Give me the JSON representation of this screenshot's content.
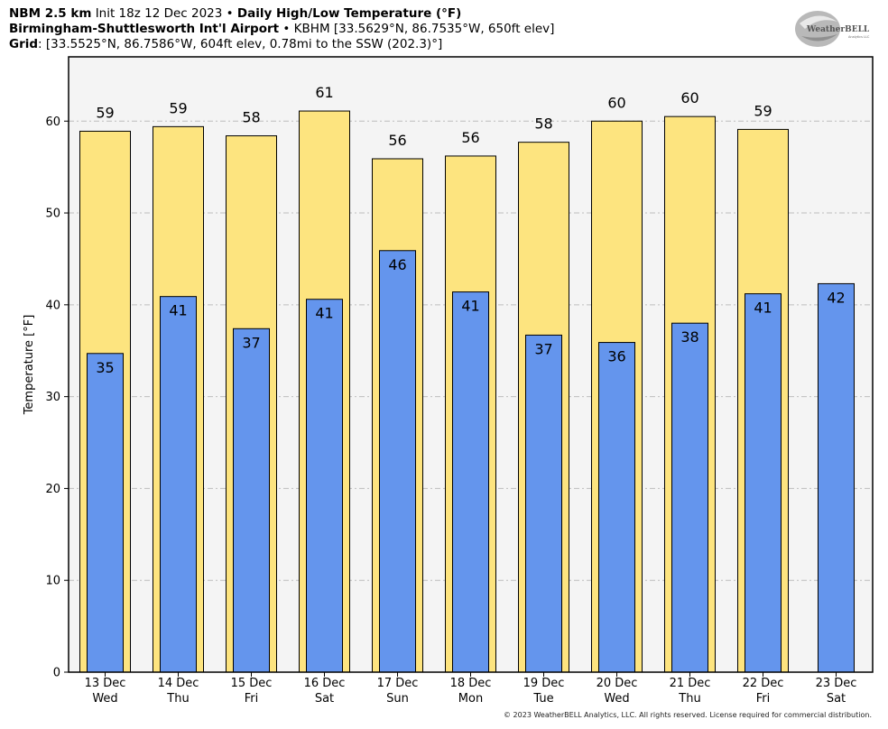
{
  "header": {
    "model": "NBM 2.5 km",
    "init": "Init 18z 12 Dec 2023",
    "product": "Daily High/Low Temperature (°F)",
    "station_name": "Birmingham-Shuttlesworth Int'l Airport",
    "station_info": "KBHM [33.5629°N, 86.7535°W, 650ft elev]",
    "grid_label": "Grid",
    "grid_info": ": [33.5525°N, 86.7586°W, 604ft elev, 0.78mi to the SSW (202.3)°]",
    "bullet": "•"
  },
  "logo": {
    "text_main": "WeatherBELL",
    "text_sub": "Analytics LLC",
    "colors": [
      "#9a9a9a",
      "#c6c6c6"
    ]
  },
  "copyright": "© 2023 WeatherBELL Analytics, LLC. All rights reserved. License required for commercial distribution.",
  "chart_data": {
    "type": "bar",
    "ylabel": "Temperature [°F]",
    "ylim": [
      0,
      67
    ],
    "yticks": [
      0,
      10,
      20,
      30,
      40,
      50,
      60
    ],
    "grid": true,
    "categories": [
      {
        "date": "13 Dec",
        "day": "Wed"
      },
      {
        "date": "14 Dec",
        "day": "Thu"
      },
      {
        "date": "15 Dec",
        "day": "Fri"
      },
      {
        "date": "16 Dec",
        "day": "Sat"
      },
      {
        "date": "17 Dec",
        "day": "Sun"
      },
      {
        "date": "18 Dec",
        "day": "Mon"
      },
      {
        "date": "19 Dec",
        "day": "Tue"
      },
      {
        "date": "20 Dec",
        "day": "Wed"
      },
      {
        "date": "21 Dec",
        "day": "Thu"
      },
      {
        "date": "22 Dec",
        "day": "Fri"
      },
      {
        "date": "23 Dec",
        "day": "Sat"
      }
    ],
    "series": [
      {
        "values": [
          58.9,
          59.4,
          58.4,
          61.1,
          55.9,
          56.2,
          57.7,
          60.0,
          60.5,
          59.1,
          null
        ],
        "labels": [
          "59",
          "59",
          "58",
          "61",
          "56",
          "56",
          "58",
          "60",
          "60",
          "59",
          ""
        ],
        "color": "#fde47f"
      },
      {
        "values": [
          34.7,
          40.9,
          37.4,
          40.6,
          45.9,
          41.4,
          36.7,
          35.9,
          38.0,
          41.2,
          42.3
        ],
        "labels": [
          "35",
          "41",
          "37",
          "41",
          "46",
          "41",
          "37",
          "36",
          "38",
          "41",
          "42"
        ],
        "color": "#6495ed"
      }
    ],
    "plot_background": "#f4f4f4"
  }
}
